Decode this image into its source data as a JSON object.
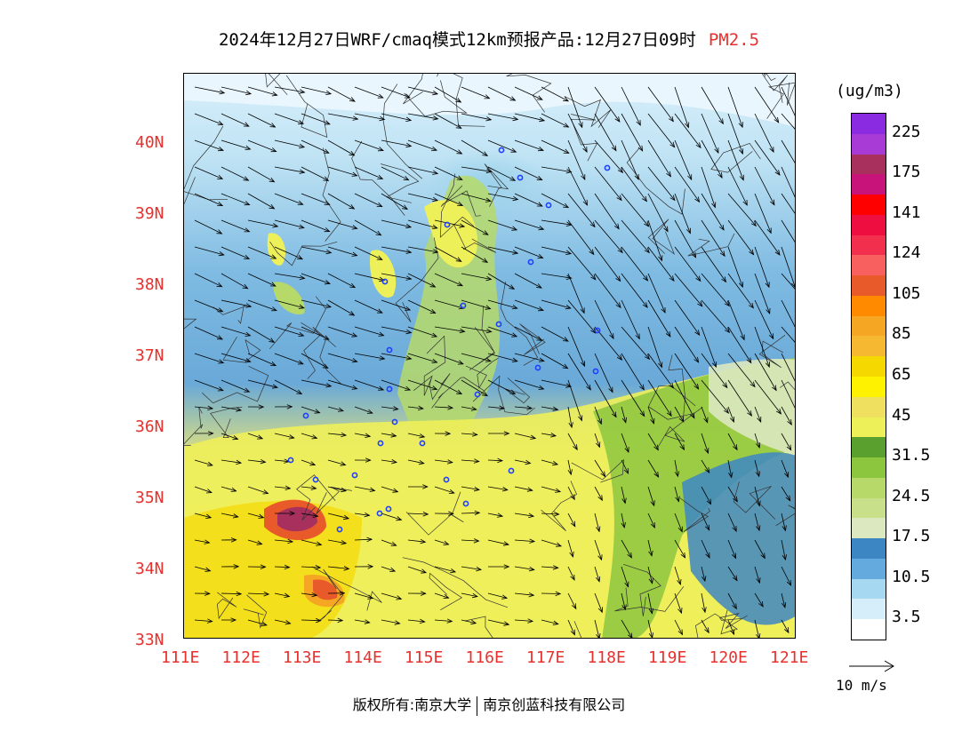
{
  "title": {
    "main": "2024年12月27日WRF/cmaq模式12km预报产品:12月27日09时",
    "pollutant": "PM2.5"
  },
  "axes": {
    "lat_labels": [
      "40N",
      "39N",
      "38N",
      "37N",
      "36N",
      "35N",
      "34N",
      "33N"
    ],
    "lon_labels": [
      "111E",
      "112E",
      "113E",
      "114E",
      "115E",
      "116E",
      "117E",
      "118E",
      "119E",
      "120E",
      "121E"
    ]
  },
  "legend": {
    "units": "(ug/m3)",
    "levels": [
      {
        "label": "225",
        "color": "#8a2be2"
      },
      {
        "label": "",
        "color": "#a83bd6"
      },
      {
        "label": "175",
        "color": "#a8305c"
      },
      {
        "label": "",
        "color": "#c8147a"
      },
      {
        "label": "141",
        "color": "#ff0000"
      },
      {
        "label": "",
        "color": "#ee0f40"
      },
      {
        "label": "124",
        "color": "#f2304e"
      },
      {
        "label": "",
        "color": "#f86060"
      },
      {
        "label": "105",
        "color": "#e85a2a"
      },
      {
        "label": "",
        "color": "#ff8a00"
      },
      {
        "label": "85",
        "color": "#f5a623"
      },
      {
        "label": "",
        "color": "#f5b830"
      },
      {
        "label": "65",
        "color": "#f5d800"
      },
      {
        "label": "",
        "color": "#fff200"
      },
      {
        "label": "45",
        "color": "#f0e060"
      },
      {
        "label": "",
        "color": "#eef05a"
      },
      {
        "label": "31.5",
        "color": "#5aa02e"
      },
      {
        "label": "",
        "color": "#8cc63f"
      },
      {
        "label": "24.5",
        "color": "#b6d96a"
      },
      {
        "label": "",
        "color": "#c9e08a"
      },
      {
        "label": "17.5",
        "color": "#dce8c0"
      },
      {
        "label": "",
        "color": "#3d86c4"
      },
      {
        "label": "10.5",
        "color": "#64aade"
      },
      {
        "label": "",
        "color": "#a6d8f2"
      },
      {
        "label": "3.5",
        "color": "#d6eefa"
      },
      {
        "label": "",
        "color": "#ffffff"
      }
    ]
  },
  "wind_reference": "10 m/s",
  "credit": {
    "left": "版权所有:南京大学",
    "right": "南京创蓝科技有限公司"
  },
  "stations_count_visible": 28,
  "colors": {
    "axis_label": "#e8302c",
    "station": "#2040ff"
  }
}
